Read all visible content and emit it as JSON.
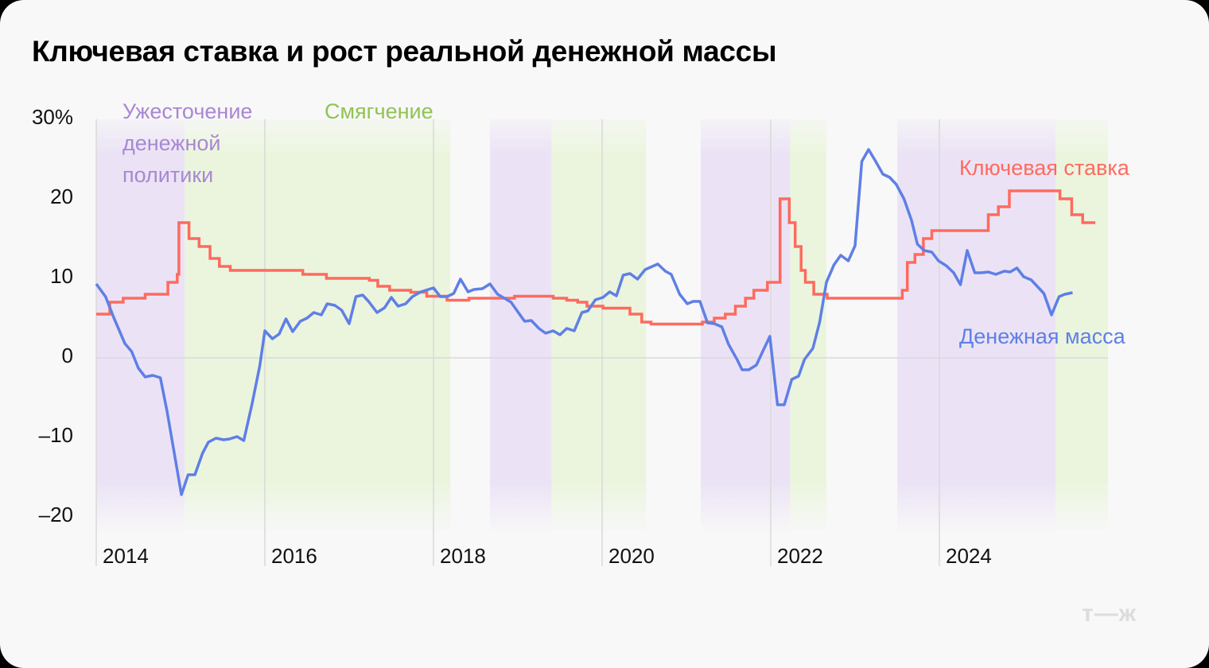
{
  "title": "Ключевая ставка и рост реальной денежной массы",
  "annotations": {
    "tightening": [
      "Ужесточение",
      "денежной",
      "политики"
    ],
    "easing": "Смягчение"
  },
  "series_labels": {
    "key_rate": "Ключевая ставка",
    "money_supply": "Денежная масса"
  },
  "logo": "т—ж",
  "colors": {
    "key_rate": "#ff6a5e",
    "money_supply": "#5f7fe6",
    "tightening_band": "#ebe3f5",
    "easing_band": "#ebf5de",
    "tightening_text": "#a987d4",
    "easing_text": "#8fc451"
  },
  "chart_data": {
    "type": "line",
    "title": "Ключевая ставка и рост реальной денежной массы",
    "xlabel": "",
    "ylabel": "%",
    "ylim": [
      -20,
      30
    ],
    "xlim": [
      2014.0,
      2026.0
    ],
    "y_ticks": [
      {
        "v": 30,
        "label": "30%"
      },
      {
        "v": 20,
        "label": "20"
      },
      {
        "v": 10,
        "label": "10"
      },
      {
        "v": 0,
        "label": "0"
      },
      {
        "v": -10,
        "label": "–10"
      },
      {
        "v": -20,
        "label": "–20"
      }
    ],
    "x_ticks": [
      2014,
      2016,
      2018,
      2020,
      2022,
      2024
    ],
    "grid": {
      "vertical_at_ticks": true,
      "zero_line": true
    },
    "legend": "inline labels at right",
    "bands": [
      {
        "type": "tightening",
        "from": 2014.0,
        "to": 2015.05
      },
      {
        "type": "easing",
        "from": 2015.05,
        "to": 2018.2
      },
      {
        "type": "tightening",
        "from": 2018.67,
        "to": 2019.4
      },
      {
        "type": "easing",
        "from": 2019.4,
        "to": 2020.52
      },
      {
        "type": "tightening",
        "from": 2021.17,
        "to": 2022.23
      },
      {
        "type": "easing",
        "from": 2022.23,
        "to": 2022.66
      },
      {
        "type": "tightening",
        "from": 2023.5,
        "to": 2025.38
      },
      {
        "type": "easing",
        "from": 2025.38,
        "to": 2026.0
      }
    ],
    "series": [
      {
        "name": "Ключевая ставка",
        "step": true,
        "points": [
          [
            2014.0,
            5.5
          ],
          [
            2014.16,
            7.0
          ],
          [
            2014.32,
            7.5
          ],
          [
            2014.58,
            8.0
          ],
          [
            2014.85,
            9.5
          ],
          [
            2014.96,
            10.5
          ],
          [
            2014.98,
            17.0
          ],
          [
            2015.1,
            15.0
          ],
          [
            2015.22,
            14.0
          ],
          [
            2015.35,
            12.5
          ],
          [
            2015.46,
            11.5
          ],
          [
            2015.59,
            11.0
          ],
          [
            2016.45,
            10.5
          ],
          [
            2016.73,
            10.0
          ],
          [
            2017.24,
            9.75
          ],
          [
            2017.34,
            9.0
          ],
          [
            2017.48,
            8.5
          ],
          [
            2017.73,
            8.25
          ],
          [
            2017.92,
            7.75
          ],
          [
            2018.16,
            7.25
          ],
          [
            2018.42,
            7.5
          ],
          [
            2018.96,
            7.75
          ],
          [
            2019.42,
            7.5
          ],
          [
            2019.58,
            7.25
          ],
          [
            2019.71,
            7.0
          ],
          [
            2019.82,
            6.5
          ],
          [
            2020.01,
            6.25
          ],
          [
            2020.33,
            5.5
          ],
          [
            2020.47,
            4.5
          ],
          [
            2020.58,
            4.25
          ],
          [
            2021.19,
            4.5
          ],
          [
            2021.33,
            5.0
          ],
          [
            2021.46,
            5.5
          ],
          [
            2021.58,
            6.5
          ],
          [
            2021.7,
            7.5
          ],
          [
            2021.8,
            8.5
          ],
          [
            2021.96,
            9.5
          ],
          [
            2022.11,
            20.0
          ],
          [
            2022.22,
            17.0
          ],
          [
            2022.29,
            14.0
          ],
          [
            2022.36,
            11.0
          ],
          [
            2022.41,
            9.5
          ],
          [
            2022.51,
            8.0
          ],
          [
            2022.67,
            7.5
          ],
          [
            2023.56,
            8.5
          ],
          [
            2023.62,
            12.0
          ],
          [
            2023.71,
            13.0
          ],
          [
            2023.81,
            15.0
          ],
          [
            2023.91,
            16.0
          ],
          [
            2023.98,
            16.0
          ],
          [
            2024.58,
            18.0
          ],
          [
            2024.7,
            19.0
          ],
          [
            2024.83,
            21.0
          ],
          [
            2025.43,
            20.0
          ],
          [
            2025.57,
            18.0
          ],
          [
            2025.7,
            17.0
          ],
          [
            2025.85,
            17.0
          ]
        ]
      },
      {
        "name": "Денежная масса",
        "step": false,
        "points": [
          [
            2014.0,
            9.3
          ],
          [
            2014.11,
            7.7
          ],
          [
            2014.21,
            5.0
          ],
          [
            2014.34,
            1.8
          ],
          [
            2014.42,
            0.8
          ],
          [
            2014.5,
            -1.3
          ],
          [
            2014.58,
            -2.4
          ],
          [
            2014.67,
            -2.2
          ],
          [
            2014.76,
            -2.5
          ],
          [
            2014.84,
            -6.7
          ],
          [
            2015.01,
            -17.2
          ],
          [
            2015.09,
            -14.7
          ],
          [
            2015.17,
            -14.7
          ],
          [
            2015.26,
            -12.0
          ],
          [
            2015.33,
            -10.6
          ],
          [
            2015.42,
            -10.1
          ],
          [
            2015.51,
            -10.3
          ],
          [
            2015.58,
            -10.2
          ],
          [
            2015.67,
            -9.9
          ],
          [
            2015.75,
            -10.4
          ],
          [
            2015.85,
            -5.7
          ],
          [
            2015.94,
            -1.0
          ],
          [
            2016.0,
            3.4
          ],
          [
            2016.09,
            2.4
          ],
          [
            2016.17,
            3.0
          ],
          [
            2016.25,
            4.9
          ],
          [
            2016.33,
            3.3
          ],
          [
            2016.42,
            4.6
          ],
          [
            2016.5,
            5.0
          ],
          [
            2016.58,
            5.7
          ],
          [
            2016.67,
            5.4
          ],
          [
            2016.74,
            6.8
          ],
          [
            2016.83,
            6.6
          ],
          [
            2016.91,
            6.0
          ],
          [
            2017.0,
            4.3
          ],
          [
            2017.08,
            7.7
          ],
          [
            2017.16,
            7.9
          ],
          [
            2017.23,
            7.1
          ],
          [
            2017.33,
            5.7
          ],
          [
            2017.42,
            6.3
          ],
          [
            2017.5,
            7.6
          ],
          [
            2017.58,
            6.5
          ],
          [
            2017.67,
            6.8
          ],
          [
            2017.75,
            7.7
          ],
          [
            2017.85,
            8.3
          ],
          [
            2018.0,
            8.8
          ],
          [
            2018.08,
            7.7
          ],
          [
            2018.16,
            7.7
          ],
          [
            2018.24,
            8.1
          ],
          [
            2018.32,
            9.9
          ],
          [
            2018.41,
            8.3
          ],
          [
            2018.48,
            8.6
          ],
          [
            2018.58,
            8.7
          ],
          [
            2018.67,
            9.3
          ],
          [
            2018.76,
            8.0
          ],
          [
            2018.92,
            7.0
          ],
          [
            2019.0,
            5.8
          ],
          [
            2019.08,
            4.6
          ],
          [
            2019.16,
            4.7
          ],
          [
            2019.25,
            3.7
          ],
          [
            2019.33,
            3.1
          ],
          [
            2019.42,
            3.4
          ],
          [
            2019.5,
            2.9
          ],
          [
            2019.58,
            3.7
          ],
          [
            2019.67,
            3.4
          ],
          [
            2019.76,
            5.7
          ],
          [
            2019.83,
            5.9
          ],
          [
            2019.92,
            7.3
          ],
          [
            2020.01,
            7.6
          ],
          [
            2020.09,
            8.3
          ],
          [
            2020.17,
            7.8
          ],
          [
            2020.25,
            10.4
          ],
          [
            2020.33,
            10.6
          ],
          [
            2020.42,
            9.9
          ],
          [
            2020.51,
            11.1
          ],
          [
            2020.66,
            11.8
          ],
          [
            2020.75,
            10.9
          ],
          [
            2020.82,
            10.5
          ],
          [
            2020.92,
            8.0
          ],
          [
            2021.01,
            6.8
          ],
          [
            2021.08,
            7.1
          ],
          [
            2021.16,
            7.1
          ],
          [
            2021.25,
            4.4
          ],
          [
            2021.33,
            4.3
          ],
          [
            2021.42,
            3.9
          ],
          [
            2021.5,
            1.7
          ],
          [
            2021.6,
            -0.2
          ],
          [
            2021.66,
            -1.5
          ],
          [
            2021.74,
            -1.5
          ],
          [
            2021.83,
            -0.9
          ],
          [
            2021.9,
            0.7
          ],
          [
            2021.99,
            2.7
          ],
          [
            2022.08,
            -5.9
          ],
          [
            2022.16,
            -5.9
          ],
          [
            2022.25,
            -2.7
          ],
          [
            2022.33,
            -2.3
          ],
          [
            2022.4,
            -0.2
          ],
          [
            2022.5,
            1.2
          ],
          [
            2022.58,
            4.5
          ],
          [
            2022.66,
            9.5
          ],
          [
            2022.75,
            11.7
          ],
          [
            2022.83,
            12.9
          ],
          [
            2022.92,
            12.2
          ],
          [
            2023.0,
            14.1
          ],
          [
            2023.08,
            24.7
          ],
          [
            2023.16,
            26.2
          ],
          [
            2023.24,
            24.8
          ],
          [
            2023.33,
            23.1
          ],
          [
            2023.41,
            22.7
          ],
          [
            2023.49,
            21.8
          ],
          [
            2023.58,
            20.0
          ],
          [
            2023.67,
            17.3
          ],
          [
            2023.74,
            14.3
          ],
          [
            2023.82,
            13.5
          ],
          [
            2023.91,
            13.3
          ],
          [
            2023.99,
            12.2
          ],
          [
            2024.08,
            11.6
          ],
          [
            2024.17,
            10.7
          ],
          [
            2024.25,
            9.2
          ],
          [
            2024.33,
            13.5
          ],
          [
            2024.42,
            10.7
          ],
          [
            2024.5,
            10.7
          ],
          [
            2024.58,
            10.8
          ],
          [
            2024.67,
            10.5
          ],
          [
            2024.77,
            10.9
          ],
          [
            2024.84,
            10.8
          ],
          [
            2024.92,
            11.3
          ],
          [
            2025.0,
            10.2
          ],
          [
            2025.09,
            9.8
          ],
          [
            2025.16,
            9.0
          ],
          [
            2025.24,
            8.1
          ],
          [
            2025.33,
            5.4
          ],
          [
            2025.42,
            7.7
          ],
          [
            2025.49,
            8.0
          ],
          [
            2025.58,
            8.2
          ]
        ]
      }
    ]
  }
}
